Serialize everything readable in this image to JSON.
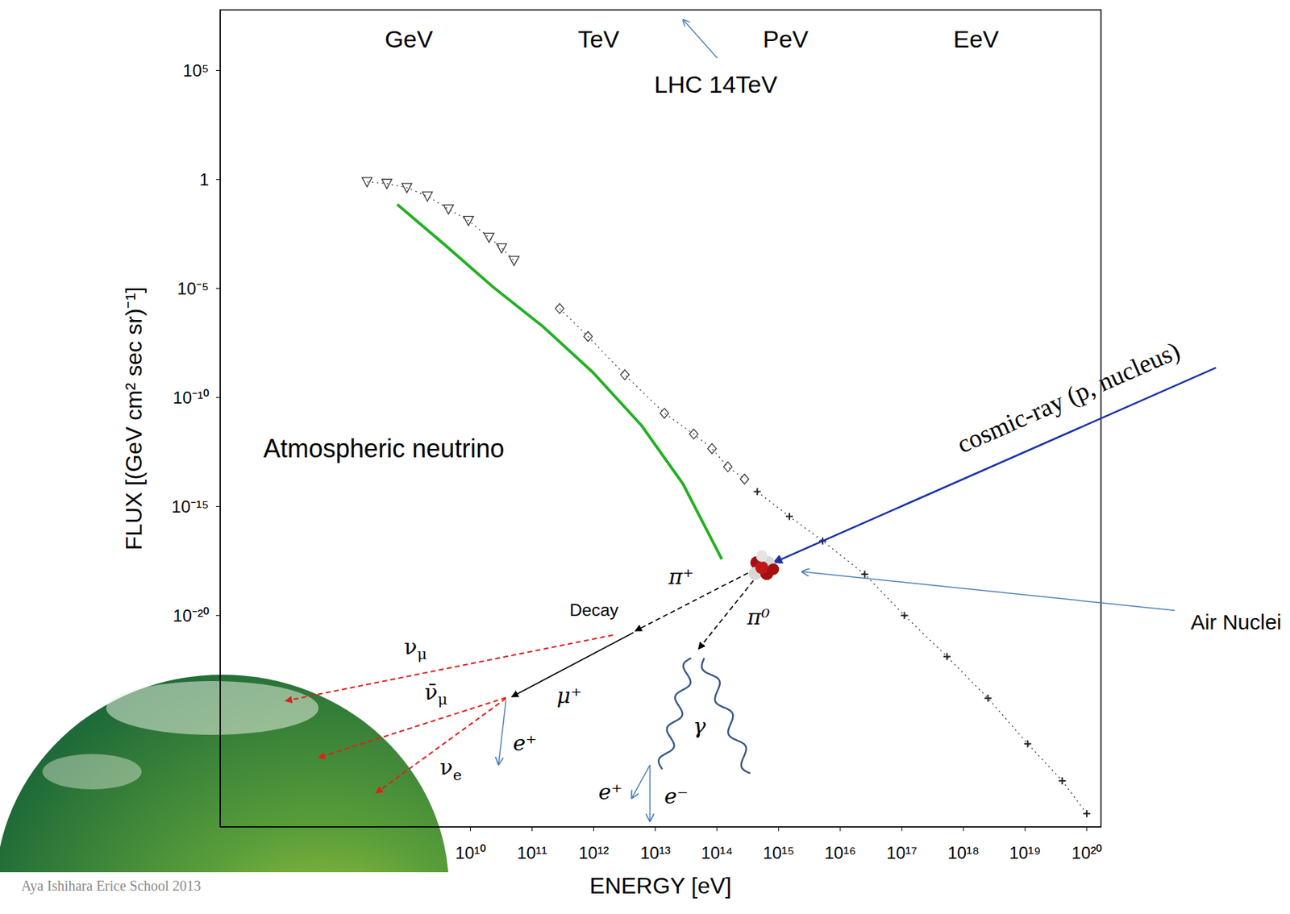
{
  "chart_data": {
    "type": "scatter",
    "x_label": "ENERGY [eV]",
    "y_label": "FLUX [(GeV cm² sec sr)⁻¹]",
    "log": true,
    "xlim": [
      870000,
      1.7e+20
    ],
    "ylim": [
      2e-30,
      60000000
    ],
    "xticks": [
      {
        "value": 10000000000.0,
        "label": "10¹⁰"
      },
      {
        "value": 100000000000.0,
        "label": "10¹¹"
      },
      {
        "value": 1000000000000.0,
        "label": "10¹²"
      },
      {
        "value": 10000000000000.0,
        "label": "10¹³"
      },
      {
        "value": 100000000000000.0,
        "label": "10¹⁴"
      },
      {
        "value": 1000000000000000.0,
        "label": "10¹⁵"
      },
      {
        "value": 1e+16,
        "label": "10¹⁶"
      },
      {
        "value": 1e+17,
        "label": "10¹⁷"
      },
      {
        "value": 1e+18,
        "label": "10¹⁸"
      },
      {
        "value": 1e+19,
        "label": "10¹⁹"
      },
      {
        "value": 1e+20,
        "label": "10²⁰"
      }
    ],
    "yticks": [
      {
        "value": 100000,
        "label": "10⁵"
      },
      1,
      {
        "value": 1e-05,
        "label": "10⁻⁵"
      },
      {
        "value": 1e-10,
        "label": "10⁻¹⁰"
      },
      {
        "value": 1e-15,
        "label": "10⁻¹⁵"
      },
      {
        "value": 1e-20,
        "label": "10⁻²⁰"
      }
    ],
    "energy_scale": [
      {
        "x": 1000000000.0,
        "label": "GeV"
      },
      {
        "x": 1200000000000.0,
        "label": "TeV"
      },
      {
        "x": 1300000000000000.0,
        "label": "PeV"
      },
      {
        "x": 1.6e+18,
        "label": "EeV"
      }
    ],
    "series": [
      {
        "type": "scatter",
        "marker": "triangle",
        "color": "#333333",
        "line_style": "dotted",
        "x": [
          210000000.0,
          440000000.0,
          930000000.0,
          2000000000.0,
          4400000000.0,
          9300000000.0,
          20000000000.0,
          32000000000.0,
          51000000000.0
        ],
        "values": [
          0.78,
          0.65,
          0.42,
          0.17,
          0.044,
          0.013,
          0.0022,
          0.00072,
          0.00019
        ]
      },
      {
        "type": "scatter",
        "marker": "diamond",
        "color": "#333333",
        "line_style": "dotted",
        "x": [
          280000000000.0,
          810000000000.0,
          3200000000000.0,
          14000000000000.0,
          42000000000000.0,
          83000000000000.0,
          150000000000000.0,
          280000000000000.0
        ],
        "values": [
          1.2e-06,
          6.3e-08,
          1.1e-09,
          1.9e-11,
          2.1e-12,
          4.5e-13,
          6.6e-14,
          1.8e-14
        ]
      },
      {
        "type": "scatter",
        "marker": "cross",
        "color": "#222222",
        "line_style": "dotted",
        "x": [
          450000000000000.0,
          1500000000000000.0,
          5200000000000000.0,
          2.5e+16,
          1.1e+17,
          5.4e+17,
          2.5e+18,
          1.1e+19,
          4e+19,
          1e+20
        ],
        "values": [
          4.8e-15,
          3.5e-16,
          2.6e-17,
          7.8e-19,
          1e-20,
          1.3e-22,
          1.6e-24,
          1.3e-26,
          2.6e-28,
          8.1e-30
        ]
      },
      {
        "type": "line",
        "marker": "none",
        "color": "#22b022",
        "line_style": "solid",
        "x": [
          650000000.0,
          3700000000.0,
          23000000000.0,
          150000000000.0,
          950000000000.0,
          6000000000000.0,
          28000000000000.0,
          120000000000000.0
        ],
        "values": [
          0.072,
          0.0011,
          1.2e-05,
          1.8e-07,
          1.5e-09,
          5.1e-12,
          1.1e-14,
          3.8e-18
        ]
      }
    ],
    "annotations": {
      "lhc": "LHC 14TeV",
      "neutrino": "Atmospheric neutrino",
      "cosmic_ray": "cosmic-ray (p, nucleus)",
      "air_nuclei": "Air Nuclei",
      "decay": "Decay",
      "pi_plus": "π⁺",
      "pi_zero": "π⁰",
      "muon": "μ⁺",
      "nu_mu": "νμ",
      "nu_mu_bar": "ν̄μ",
      "nu_e": "νe",
      "positron_mu": "e⁺",
      "gamma": "γ",
      "positron_gamma": "e⁺",
      "electron": "e⁻",
      "credit": "Aya Ishihara   Erice School 2013"
    }
  }
}
